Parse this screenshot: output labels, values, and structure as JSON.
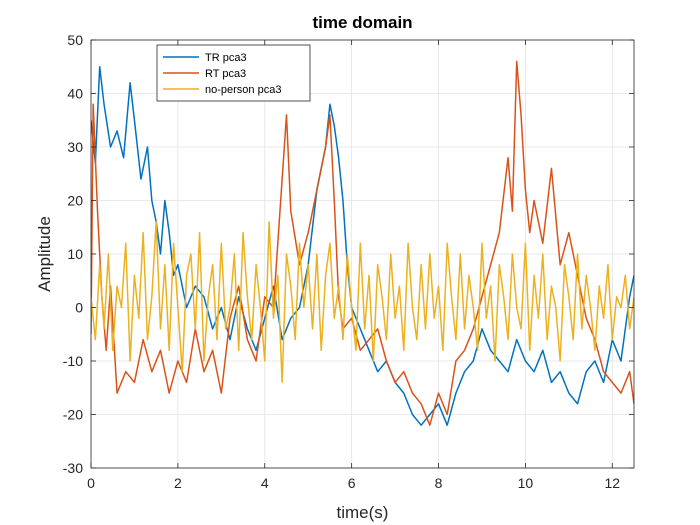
{
  "chart_data": {
    "type": "line",
    "title": "time domain",
    "xlabel": "time(s)",
    "ylabel": "Amplitude",
    "xlim": [
      0,
      12.5
    ],
    "ylim": [
      -30,
      50
    ],
    "xticks": [
      0,
      2,
      4,
      6,
      8,
      10,
      12
    ],
    "yticks": [
      -30,
      -20,
      -10,
      0,
      10,
      20,
      30,
      40,
      50
    ],
    "xtick_labels": [
      "0",
      "2",
      "4",
      "6",
      "8",
      "10",
      "12"
    ],
    "ytick_labels": [
      "-30",
      "-20",
      "-10",
      "0",
      "10",
      "20",
      "30",
      "40",
      "50"
    ],
    "grid": true,
    "legend_position": "top-left",
    "series": [
      {
        "name": "TR pca3",
        "color": "#0072BD",
        "x": [
          0,
          0.1,
          0.2,
          0.3,
          0.45,
          0.6,
          0.75,
          0.9,
          1.0,
          1.15,
          1.3,
          1.4,
          1.5,
          1.6,
          1.7,
          1.8,
          1.9,
          2.0,
          2.2,
          2.4,
          2.6,
          2.8,
          3.0,
          3.2,
          3.4,
          3.6,
          3.8,
          4.0,
          4.2,
          4.4,
          4.6,
          4.8,
          5.0,
          5.2,
          5.4,
          5.5,
          5.6,
          5.7,
          5.8,
          5.9,
          6.0,
          6.2,
          6.4,
          6.6,
          6.8,
          7.0,
          7.2,
          7.4,
          7.6,
          7.8,
          8.0,
          8.2,
          8.4,
          8.6,
          8.8,
          9.0,
          9.2,
          9.4,
          9.6,
          9.8,
          10.0,
          10.2,
          10.4,
          10.6,
          10.8,
          11.0,
          11.2,
          11.4,
          11.6,
          11.8,
          12.0,
          12.2,
          12.3,
          12.4,
          12.5
        ],
        "values": [
          35,
          27,
          45,
          38,
          30,
          33,
          28,
          42,
          35,
          24,
          30,
          20,
          16,
          10,
          20,
          14,
          6,
          8,
          0,
          4,
          2,
          -4,
          0,
          -6,
          2,
          -4,
          -8,
          -2,
          4,
          -6,
          -2,
          0,
          8,
          22,
          30,
          38,
          34,
          28,
          20,
          8,
          0,
          -4,
          -8,
          -12,
          -10,
          -14,
          -16,
          -20,
          -22,
          -20,
          -18,
          -22,
          -16,
          -12,
          -10,
          -4,
          -8,
          -10,
          -12,
          -6,
          -10,
          -12,
          -8,
          -14,
          -12,
          -16,
          -18,
          -12,
          -10,
          -14,
          -6,
          -10,
          -4,
          2,
          6
        ]
      },
      {
        "name": "RT pca3",
        "color": "#D95319",
        "x": [
          0,
          0.05,
          0.15,
          0.25,
          0.35,
          0.45,
          0.6,
          0.8,
          1.0,
          1.2,
          1.4,
          1.6,
          1.8,
          2.0,
          2.2,
          2.4,
          2.6,
          2.8,
          3.0,
          3.2,
          3.4,
          3.6,
          3.8,
          4.0,
          4.2,
          4.4,
          4.5,
          4.6,
          4.8,
          5.0,
          5.2,
          5.4,
          5.5,
          5.6,
          5.7,
          5.8,
          6.0,
          6.2,
          6.4,
          6.6,
          6.8,
          7.0,
          7.2,
          7.4,
          7.6,
          7.8,
          8.0,
          8.2,
          8.4,
          8.6,
          8.8,
          9.0,
          9.2,
          9.4,
          9.6,
          9.7,
          9.8,
          9.9,
          10.0,
          10.1,
          10.2,
          10.4,
          10.6,
          10.8,
          11.0,
          11.2,
          11.4,
          11.6,
          11.8,
          12.0,
          12.2,
          12.4,
          12.5
        ],
        "values": [
          -5,
          38,
          18,
          2,
          -8,
          4,
          -16,
          -12,
          -14,
          -6,
          -12,
          -8,
          -16,
          -10,
          -14,
          -4,
          -12,
          -8,
          -16,
          -2,
          4,
          -6,
          -10,
          2,
          0,
          24,
          36,
          18,
          8,
          14,
          22,
          30,
          36,
          20,
          2,
          -4,
          -2,
          -8,
          -6,
          -4,
          -10,
          -14,
          -12,
          -16,
          -18,
          -22,
          -16,
          -20,
          -10,
          -8,
          -4,
          2,
          8,
          14,
          28,
          18,
          46,
          36,
          22,
          14,
          20,
          12,
          26,
          8,
          14,
          6,
          -2,
          -6,
          -12,
          -14,
          -16,
          -12,
          -18
        ]
      },
      {
        "name": "no-person pca3",
        "color": "#EDB120",
        "x": [
          0,
          0.1,
          0.2,
          0.3,
          0.4,
          0.5,
          0.6,
          0.7,
          0.8,
          0.9,
          1.0,
          1.1,
          1.2,
          1.3,
          1.4,
          1.5,
          1.6,
          1.7,
          1.8,
          1.9,
          2.0,
          2.1,
          2.2,
          2.3,
          2.4,
          2.5,
          2.6,
          2.7,
          2.8,
          2.9,
          3.0,
          3.1,
          3.2,
          3.3,
          3.4,
          3.5,
          3.6,
          3.7,
          3.8,
          3.9,
          4.0,
          4.1,
          4.2,
          4.3,
          4.4,
          4.5,
          4.6,
          4.7,
          4.8,
          4.9,
          5.0,
          5.1,
          5.2,
          5.3,
          5.4,
          5.5,
          5.6,
          5.7,
          5.8,
          5.9,
          6.0,
          6.1,
          6.2,
          6.3,
          6.4,
          6.5,
          6.6,
          6.7,
          6.8,
          6.9,
          7.0,
          7.1,
          7.2,
          7.3,
          7.4,
          7.5,
          7.6,
          7.7,
          7.8,
          7.9,
          8.0,
          8.1,
          8.2,
          8.3,
          8.4,
          8.5,
          8.6,
          8.7,
          8.8,
          8.9,
          9.0,
          9.1,
          9.2,
          9.3,
          9.4,
          9.5,
          9.6,
          9.7,
          9.8,
          9.9,
          10.0,
          10.1,
          10.2,
          10.3,
          10.4,
          10.5,
          10.6,
          10.7,
          10.8,
          10.9,
          11.0,
          11.1,
          11.2,
          11.3,
          11.4,
          11.5,
          11.6,
          11.7,
          11.8,
          11.9,
          12.0,
          12.1,
          12.2,
          12.3,
          12.4,
          12.5
        ],
        "values": [
          2,
          -6,
          8,
          -4,
          10,
          -8,
          4,
          0,
          12,
          -10,
          6,
          -2,
          14,
          -6,
          2,
          16,
          -4,
          8,
          -8,
          12,
          0,
          -12,
          6,
          10,
          -4,
          14,
          -10,
          2,
          8,
          -6,
          12,
          -4,
          0,
          10,
          -8,
          14,
          2,
          -6,
          8,
          0,
          -10,
          16,
          -2,
          6,
          -14,
          10,
          4,
          -6,
          12,
          0,
          8,
          -4,
          10,
          -8,
          6,
          12,
          -2,
          4,
          -6,
          10,
          0,
          -8,
          12,
          -4,
          6,
          -10,
          8,
          2,
          -6,
          10,
          -2,
          4,
          -8,
          12,
          0,
          -6,
          8,
          -4,
          10,
          -2,
          4,
          -8,
          12,
          2,
          -6,
          10,
          -4,
          6,
          0,
          -8,
          12,
          -2,
          4,
          -10,
          8,
          2,
          -6,
          10,
          0,
          -4,
          12,
          -8,
          6,
          -2,
          10,
          -6,
          4,
          0,
          -10,
          8,
          2,
          -6,
          10,
          -4,
          6,
          0,
          -8,
          4,
          -2,
          8,
          -6,
          2,
          0,
          6,
          -4,
          2
        ]
      }
    ]
  }
}
